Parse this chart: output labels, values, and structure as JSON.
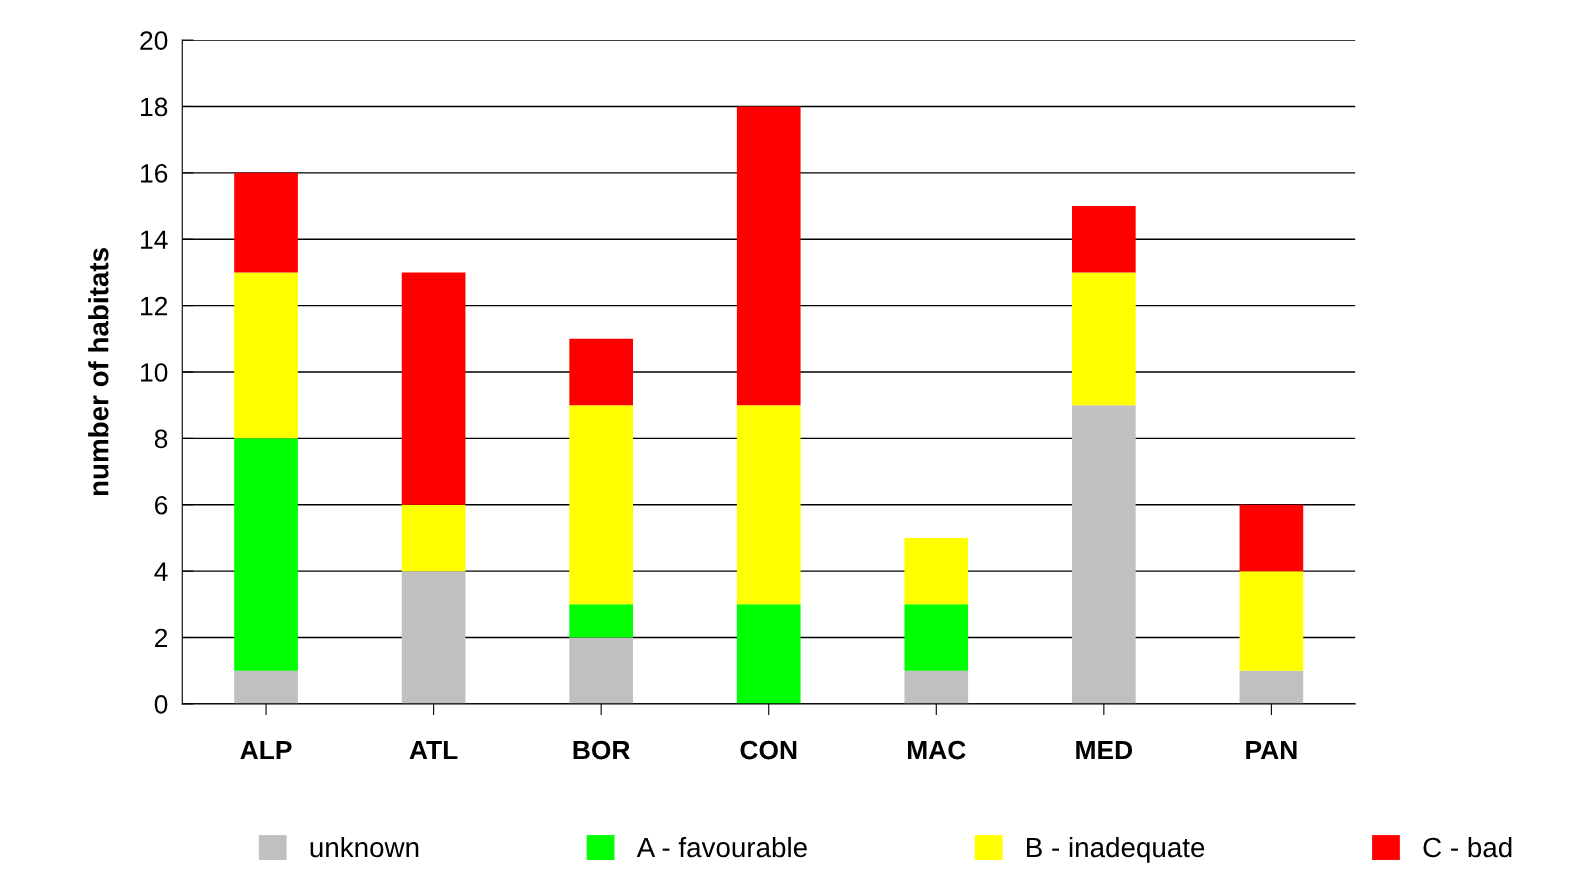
{
  "chart_data": {
    "type": "bar",
    "stacked": true,
    "ylabel": "number of habitats",
    "categories": [
      "ALP",
      "ATL",
      "BOR",
      "CON",
      "MAC",
      "MED",
      "PAN"
    ],
    "series": [
      {
        "name": "unknown",
        "color": "#c0c0c0",
        "values": [
          1,
          4,
          2,
          0,
          1,
          9,
          1
        ]
      },
      {
        "name": "A - favourable",
        "color": "#00ff00",
        "values": [
          7,
          0,
          1,
          3,
          2,
          0,
          0
        ]
      },
      {
        "name": "B - inadequate",
        "color": "#ffff00",
        "values": [
          5,
          2,
          6,
          6,
          2,
          4,
          3
        ]
      },
      {
        "name": "C - bad",
        "color": "#ff0000",
        "values": [
          3,
          7,
          2,
          9,
          0,
          2,
          2
        ]
      }
    ],
    "ylim": [
      0,
      20
    ],
    "yticks": [
      0,
      2,
      4,
      6,
      8,
      10,
      12,
      14,
      16,
      18,
      20
    ],
    "grid": "y",
    "legend": "bottom"
  }
}
